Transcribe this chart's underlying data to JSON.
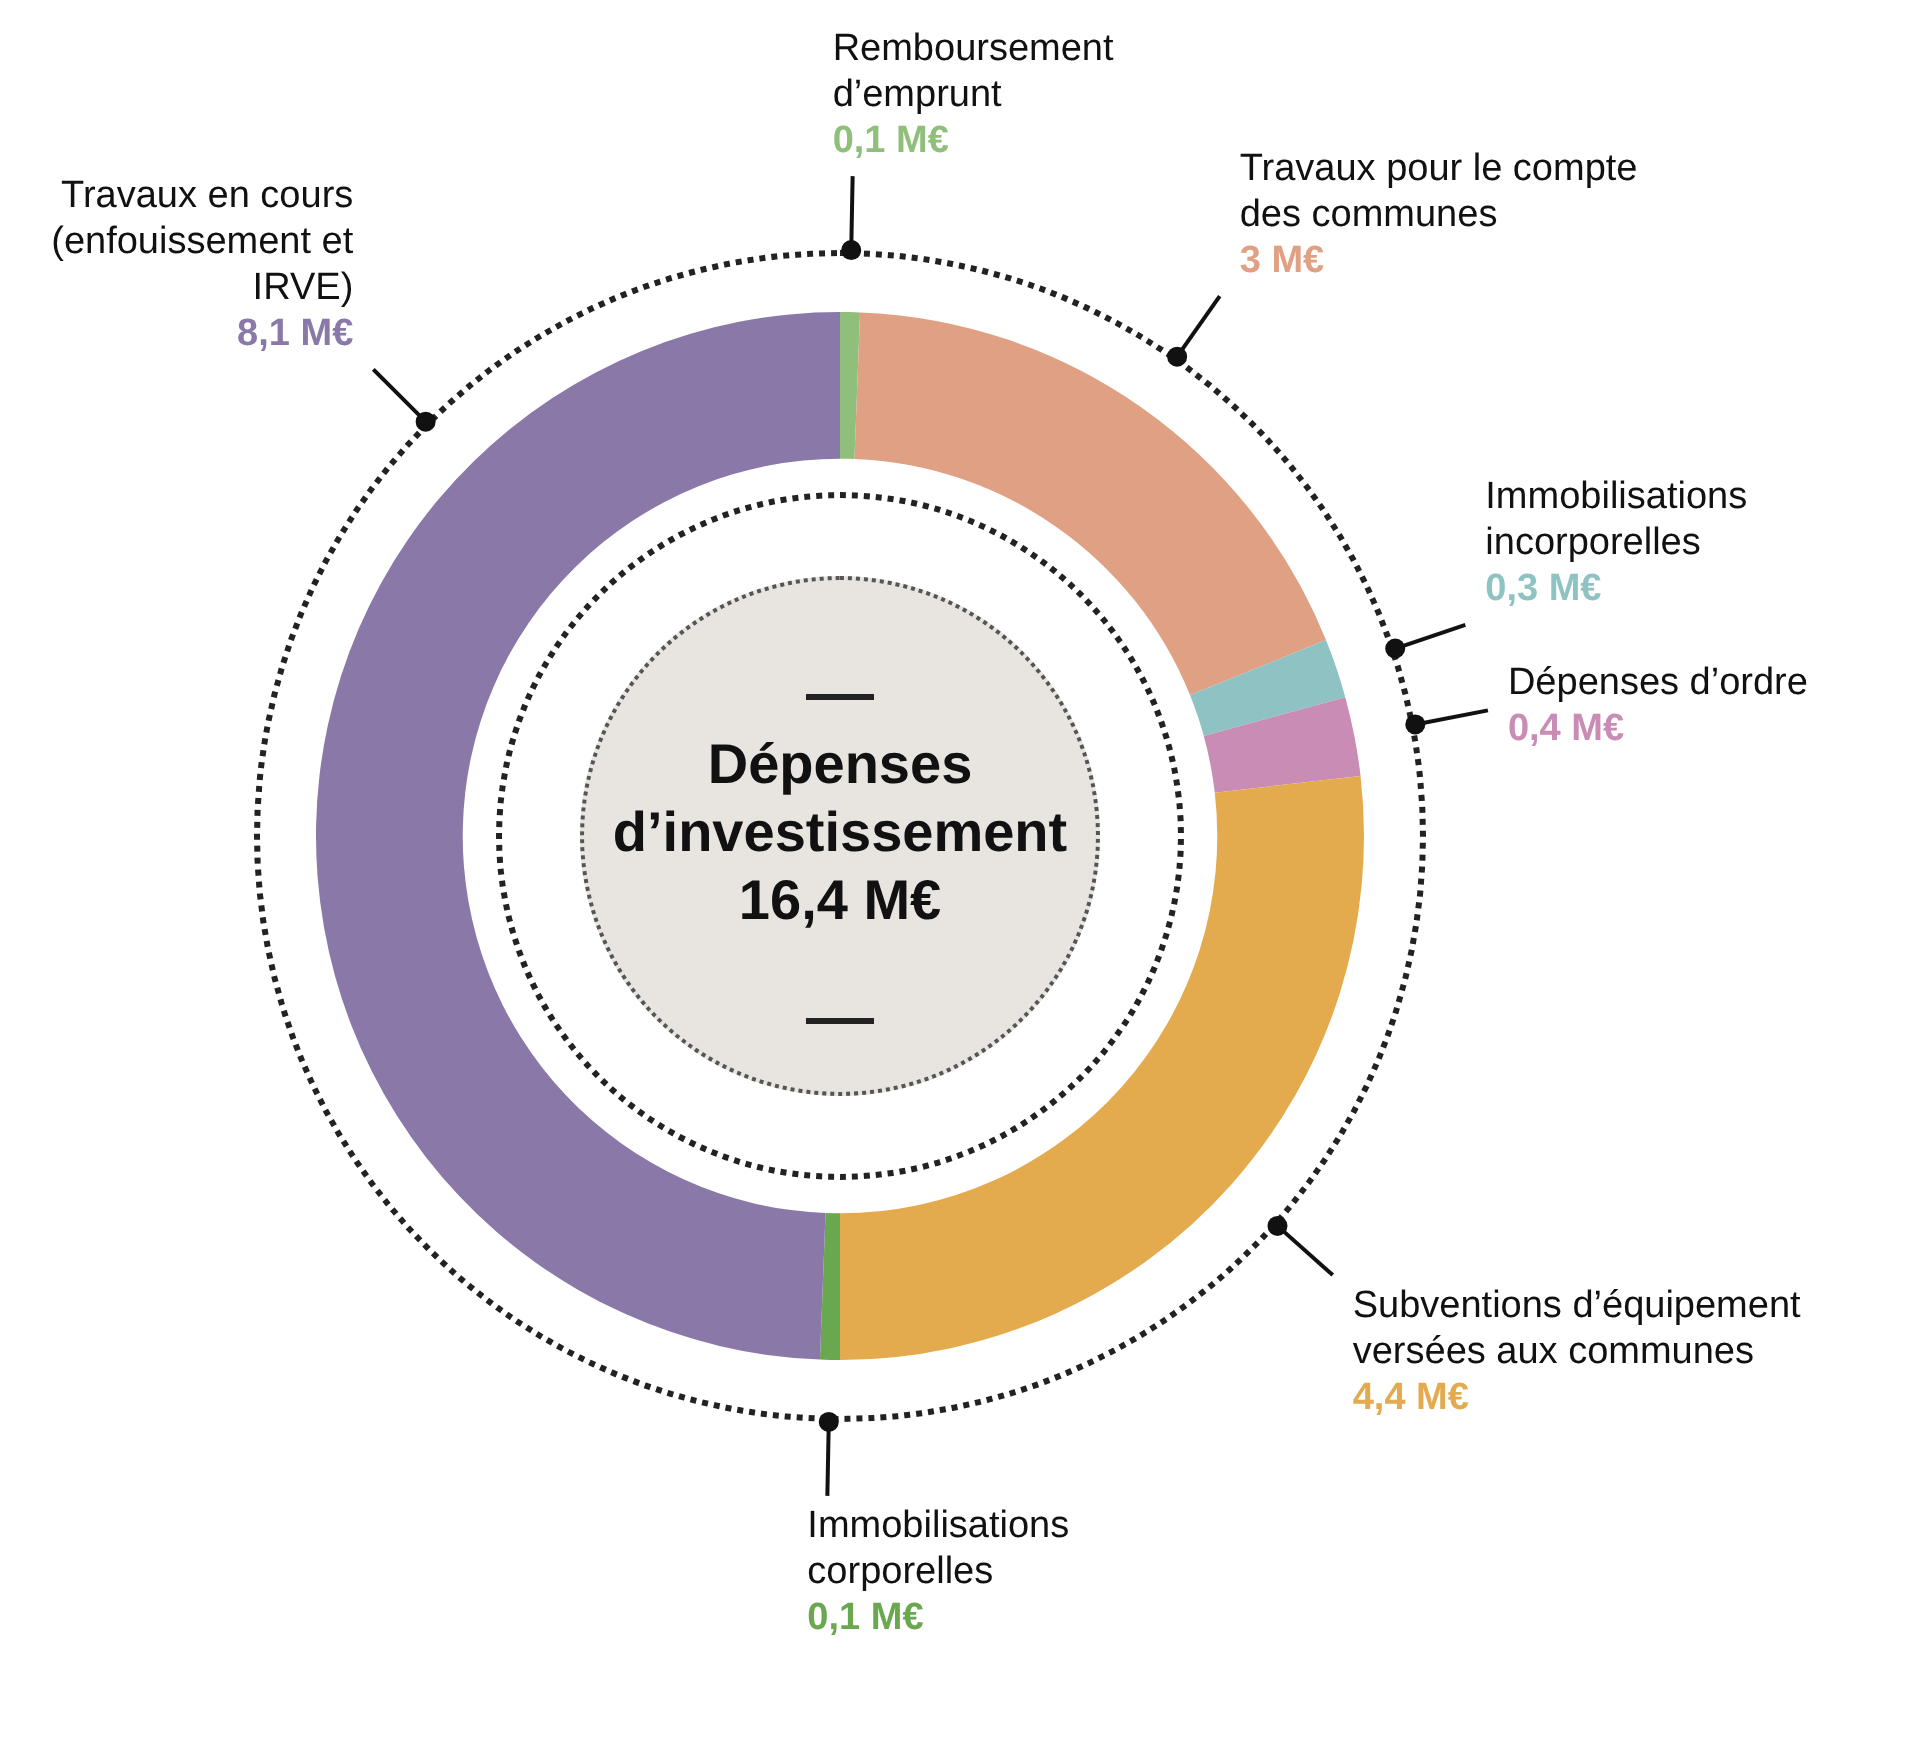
{
  "chart_data": {
    "type": "donut",
    "title": "Dépenses d’investissement",
    "annotations": [
      "16,4 M€"
    ],
    "categories": [
      "Remboursement d’emprunt",
      "Travaux pour le compte des communes",
      "Immobilisations incorporelles",
      "Dépenses d’ordre",
      "Subventions d’équipement versées aux communes",
      "Immobilisations corporelles",
      "Travaux en cours (enfouissement et IRVE)"
    ],
    "values": [
      0.1,
      3,
      0.3,
      0.4,
      4.4,
      0.1,
      8.1
    ],
    "colors": [
      "#8fbf7a",
      "#e0a083",
      "#8fc3c3",
      "#c98db5",
      "#e3ab4e",
      "#6aa84f",
      "#8a78a8"
    ],
    "value_labels": [
      "0,1 M€",
      "3 M€",
      "0,3 M€",
      "0,4 M€",
      "4,4 M€",
      "0,1 M€",
      "8,1 M€"
    ]
  }
}
